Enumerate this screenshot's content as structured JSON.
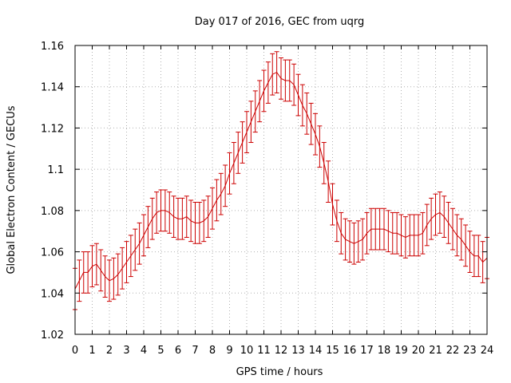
{
  "chart_data": {
    "type": "line",
    "title": "Day 017 of 2016, GEC from uqrg",
    "xlabel": "GPS time / hours",
    "ylabel": "Global Electron Content / GECUs",
    "xlim": [
      0,
      24
    ],
    "ylim": [
      1.02,
      1.16
    ],
    "x_ticks": [
      "0",
      "1",
      "2",
      "3",
      "4",
      "5",
      "6",
      "7",
      "8",
      "9",
      "10",
      "11",
      "12",
      "13",
      "14",
      "15",
      "16",
      "17",
      "18",
      "19",
      "20",
      "21",
      "22",
      "23",
      "24"
    ],
    "y_ticks": [
      "1.02",
      "1.04",
      "1.06",
      "1.08",
      "1.1",
      "1.12",
      "1.14",
      "1.16"
    ],
    "grid": true,
    "error_bar": 0.01,
    "series_color": "#cc0000",
    "series": [
      {
        "x": [
          0,
          0.25,
          0.5,
          0.75,
          1,
          1.25,
          1.5,
          1.75,
          2,
          2.25,
          2.5,
          2.75,
          3,
          3.25,
          3.5,
          3.75,
          4,
          4.25,
          4.5,
          4.75,
          5,
          5.25,
          5.5,
          5.75,
          6,
          6.25,
          6.5,
          6.75,
          7,
          7.25,
          7.5,
          7.75,
          8,
          8.25,
          8.5,
          8.75,
          9,
          9.25,
          9.5,
          9.75,
          10,
          10.25,
          10.5,
          10.75,
          11,
          11.25,
          11.5,
          11.75,
          12,
          12.25,
          12.5,
          12.75,
          13,
          13.25,
          13.5,
          13.75,
          14,
          14.25,
          14.5,
          14.75,
          15,
          15.25,
          15.5,
          15.75,
          16,
          16.25,
          16.5,
          16.75,
          17,
          17.25,
          17.5,
          17.75,
          18,
          18.25,
          18.5,
          18.75,
          19,
          19.25,
          19.5,
          19.75,
          20,
          20.25,
          20.5,
          20.75,
          21,
          21.25,
          21.5,
          21.75,
          22,
          22.25,
          22.5,
          22.75,
          23,
          23.25,
          23.5,
          23.75,
          24
        ],
        "y": [
          1.042,
          1.046,
          1.05,
          1.05,
          1.053,
          1.054,
          1.051,
          1.048,
          1.046,
          1.047,
          1.049,
          1.052,
          1.055,
          1.058,
          1.061,
          1.064,
          1.068,
          1.072,
          1.076,
          1.079,
          1.08,
          1.08,
          1.079,
          1.077,
          1.076,
          1.076,
          1.077,
          1.075,
          1.074,
          1.074,
          1.075,
          1.077,
          1.081,
          1.085,
          1.088,
          1.092,
          1.098,
          1.103,
          1.108,
          1.113,
          1.118,
          1.123,
          1.128,
          1.133,
          1.138,
          1.142,
          1.146,
          1.147,
          1.144,
          1.143,
          1.143,
          1.141,
          1.136,
          1.131,
          1.127,
          1.122,
          1.117,
          1.111,
          1.103,
          1.094,
          1.083,
          1.075,
          1.069,
          1.066,
          1.065,
          1.064,
          1.065,
          1.066,
          1.069,
          1.071,
          1.071,
          1.071,
          1.071,
          1.07,
          1.069,
          1.069,
          1.068,
          1.067,
          1.068,
          1.068,
          1.068,
          1.069,
          1.073,
          1.076,
          1.078,
          1.079,
          1.077,
          1.074,
          1.071,
          1.068,
          1.066,
          1.063,
          1.06,
          1.058,
          1.058,
          1.055,
          1.057
        ]
      }
    ]
  }
}
